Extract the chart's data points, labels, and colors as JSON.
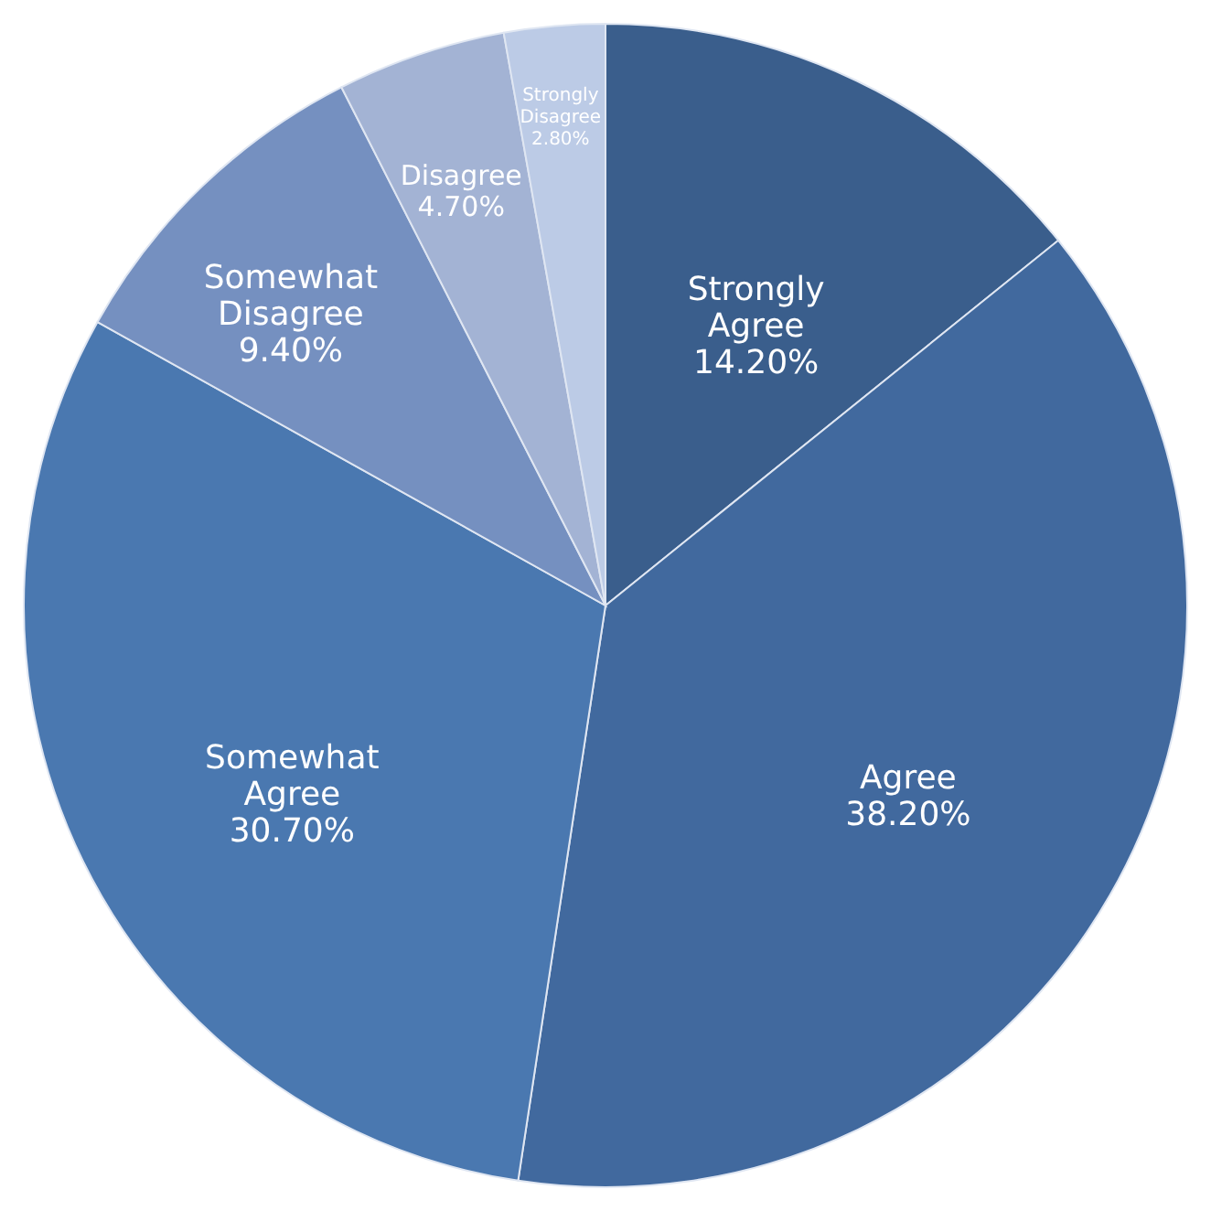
{
  "chart_data": {
    "type": "pie",
    "categories": [
      "Strongly Agree",
      "Agree",
      "Somewhat Agree",
      "Somewhat Disagree",
      "Disagree",
      "Strongly Disagree"
    ],
    "values": [
      14.2,
      38.2,
      30.7,
      9.4,
      4.7,
      2.8
    ],
    "value_labels": [
      "14.20%",
      "38.20%",
      "30.70%",
      "9.40%",
      "4.70%",
      "2.80%"
    ],
    "colors": [
      "#3a5e8c",
      "#41699e",
      "#4a78b0",
      "#7590c0",
      "#a3b3d4",
      "#bccbe6"
    ]
  }
}
